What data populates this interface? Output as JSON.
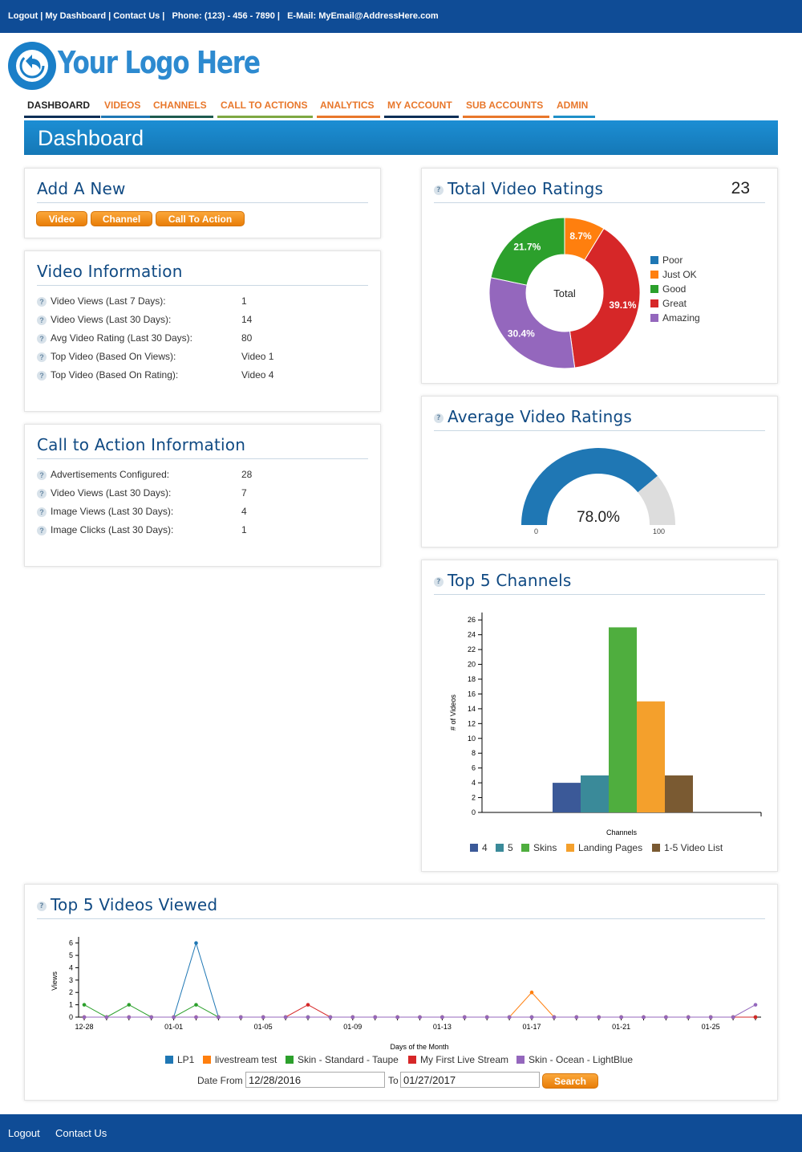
{
  "topbar": {
    "logout": "Logout",
    "my_dashboard": "My Dashboard",
    "contact_us": "Contact Us",
    "phone": "Phone: (123) - 456 - 7890",
    "email": "E-Mail: MyEmail@AddressHere.com"
  },
  "logo": {
    "text": "Your Logo Here"
  },
  "nav": {
    "tabs": [
      {
        "label": "DASHBOARD",
        "color": "#0d2f57",
        "active": true
      },
      {
        "label": "VIDEOS",
        "color": "#1f77b4"
      },
      {
        "label": "CHANNELS",
        "color": "#1e5b4f"
      },
      {
        "label": "CALL TO ACTIONS",
        "color": "#7ea842"
      },
      {
        "label": "ANALYTICS",
        "color": "#e8772b"
      },
      {
        "label": "MY ACCOUNT",
        "color": "#0d2f57"
      },
      {
        "label": "SUB ACCOUNTS",
        "color": "#e8772b"
      },
      {
        "label": "ADMIN",
        "color": "#1f90c8"
      }
    ]
  },
  "page_title": "Dashboard",
  "add_new": {
    "title": "Add A New",
    "buttons": [
      "Video",
      "Channel",
      "Call To Action"
    ]
  },
  "video_info": {
    "title": "Video Information",
    "rows": [
      {
        "label": "Video Views (Last 7 Days):",
        "value": "1"
      },
      {
        "label": "Video Views (Last 30 Days):",
        "value": "14"
      },
      {
        "label": "Avg Video Rating (Last 30 Days):",
        "value": "80"
      },
      {
        "label": "Top Video (Based On Views):",
        "value": "Video 1"
      },
      {
        "label": "Top Video (Based On Rating):",
        "value": "Video 4"
      }
    ]
  },
  "cta_info": {
    "title": "Call to Action Information",
    "rows": [
      {
        "label": "Advertisements Configured:",
        "value": "28"
      },
      {
        "label": "Video Views (Last 30 Days):",
        "value": "7"
      },
      {
        "label": "Image Views (Last 30 Days):",
        "value": "4"
      },
      {
        "label": "Image Clicks (Last 30 Days):",
        "value": "1"
      }
    ]
  },
  "total_ratings": {
    "title": "Total Video Ratings",
    "total": "23",
    "center_label": "Total"
  },
  "avg_ratings": {
    "title": "Average Video Ratings",
    "value_label": "78.0%",
    "min_label": "0",
    "max_label": "100"
  },
  "top_channels": {
    "title": "Top 5 Channels"
  },
  "top_videos": {
    "title": "Top 5 Videos Viewed",
    "date_from_label": "Date From",
    "date_from": "12/28/2016",
    "to_label": "To",
    "date_to": "01/27/2017",
    "search_label": "Search"
  },
  "footer": {
    "logout": "Logout",
    "contact_us": "Contact Us"
  },
  "help_glyph": "?",
  "chart_data": [
    {
      "type": "pie",
      "donut": true,
      "title": "Total Video Ratings",
      "categories": [
        "Poor",
        "Just OK",
        "Good",
        "Great",
        "Amazing"
      ],
      "values": [
        0,
        8.7,
        21.7,
        39.1,
        30.4
      ],
      "labels": [
        "",
        "8.7%",
        "21.7%",
        "39.1%",
        "30.4%"
      ],
      "colors": [
        "#1f77b4",
        "#ff7f0e",
        "#2ca02c",
        "#d62728",
        "#9467bd"
      ],
      "legend": "right"
    },
    {
      "type": "gauge",
      "title": "Average Video Ratings",
      "value": 78.0,
      "min": 0,
      "max": 100,
      "colors": {
        "fill": "#1f77b4",
        "rest": "#dddddd"
      }
    },
    {
      "type": "bar",
      "title": "Top 5 Channels",
      "xlabel": "Channels",
      "ylabel": "# of Videos",
      "ylim": [
        0,
        27
      ],
      "yticks": [
        0,
        2,
        4,
        6,
        8,
        10,
        12,
        14,
        16,
        18,
        20,
        22,
        24,
        26
      ],
      "series": [
        {
          "name": "4",
          "value": 4,
          "color": "#3b5998"
        },
        {
          "name": "5",
          "value": 5,
          "color": "#3a8a99"
        },
        {
          "name": "Skins",
          "value": 25,
          "color": "#4fae3e"
        },
        {
          "name": "Landing Pages",
          "value": 15,
          "color": "#f4a02c"
        },
        {
          "name": "1-5 Video List",
          "value": 5,
          "color": "#7a5a32"
        }
      ],
      "legend": "bottom",
      "grid": false
    },
    {
      "type": "line",
      "title": "Top 5 Videos Viewed",
      "xlabel": "Days of the Month",
      "ylabel": "Views",
      "ylim": [
        0,
        6.5
      ],
      "yticks": [
        0,
        1,
        2,
        3,
        4,
        5,
        6
      ],
      "x": [
        "12-28",
        "12-29",
        "12-30",
        "12-31",
        "01-01",
        "01-02",
        "01-03",
        "01-04",
        "01-05",
        "01-06",
        "01-07",
        "01-08",
        "01-09",
        "01-10",
        "01-11",
        "01-12",
        "01-13",
        "01-14",
        "01-15",
        "01-16",
        "01-17",
        "01-18",
        "01-19",
        "01-20",
        "01-21",
        "01-22",
        "01-23",
        "01-24",
        "01-25",
        "01-26",
        "01-27"
      ],
      "xtick_labels": [
        "12-28",
        "01-01",
        "01-05",
        "01-09",
        "01-13",
        "01-17",
        "01-21",
        "01-25"
      ],
      "series": [
        {
          "name": "LP1",
          "color": "#1f77b4",
          "values": [
            0,
            0,
            0,
            0,
            0,
            6,
            0,
            0,
            0,
            0,
            0,
            0,
            0,
            0,
            0,
            0,
            0,
            0,
            0,
            0,
            0,
            0,
            0,
            0,
            0,
            0,
            0,
            0,
            0,
            0,
            0
          ]
        },
        {
          "name": "livestream test",
          "color": "#ff7f0e",
          "values": [
            0,
            0,
            0,
            0,
            0,
            0,
            0,
            0,
            0,
            0,
            0,
            0,
            0,
            0,
            0,
            0,
            0,
            0,
            0,
            0,
            2,
            0,
            0,
            0,
            0,
            0,
            0,
            0,
            0,
            0,
            0
          ]
        },
        {
          "name": "Skin - Standard - Taupe",
          "color": "#2ca02c",
          "values": [
            1,
            0,
            1,
            0,
            0,
            1,
            0,
            0,
            0,
            0,
            0,
            0,
            0,
            0,
            0,
            0,
            0,
            0,
            0,
            0,
            0,
            0,
            0,
            0,
            0,
            0,
            0,
            0,
            0,
            0,
            0
          ]
        },
        {
          "name": "My First Live Stream",
          "color": "#d62728",
          "values": [
            0,
            0,
            0,
            0,
            0,
            0,
            0,
            0,
            0,
            0,
            1,
            0,
            0,
            0,
            0,
            0,
            0,
            0,
            0,
            0,
            0,
            0,
            0,
            0,
            0,
            0,
            0,
            0,
            0,
            0,
            0
          ]
        },
        {
          "name": "Skin - Ocean - LightBlue",
          "color": "#9467bd",
          "values": [
            0,
            0,
            0,
            0,
            0,
            0,
            0,
            0,
            0,
            0,
            0,
            0,
            0,
            0,
            0,
            0,
            0,
            0,
            0,
            0,
            0,
            0,
            0,
            0,
            0,
            0,
            0,
            0,
            0,
            0,
            1
          ]
        }
      ],
      "legend": "bottom",
      "grid": false
    }
  ]
}
